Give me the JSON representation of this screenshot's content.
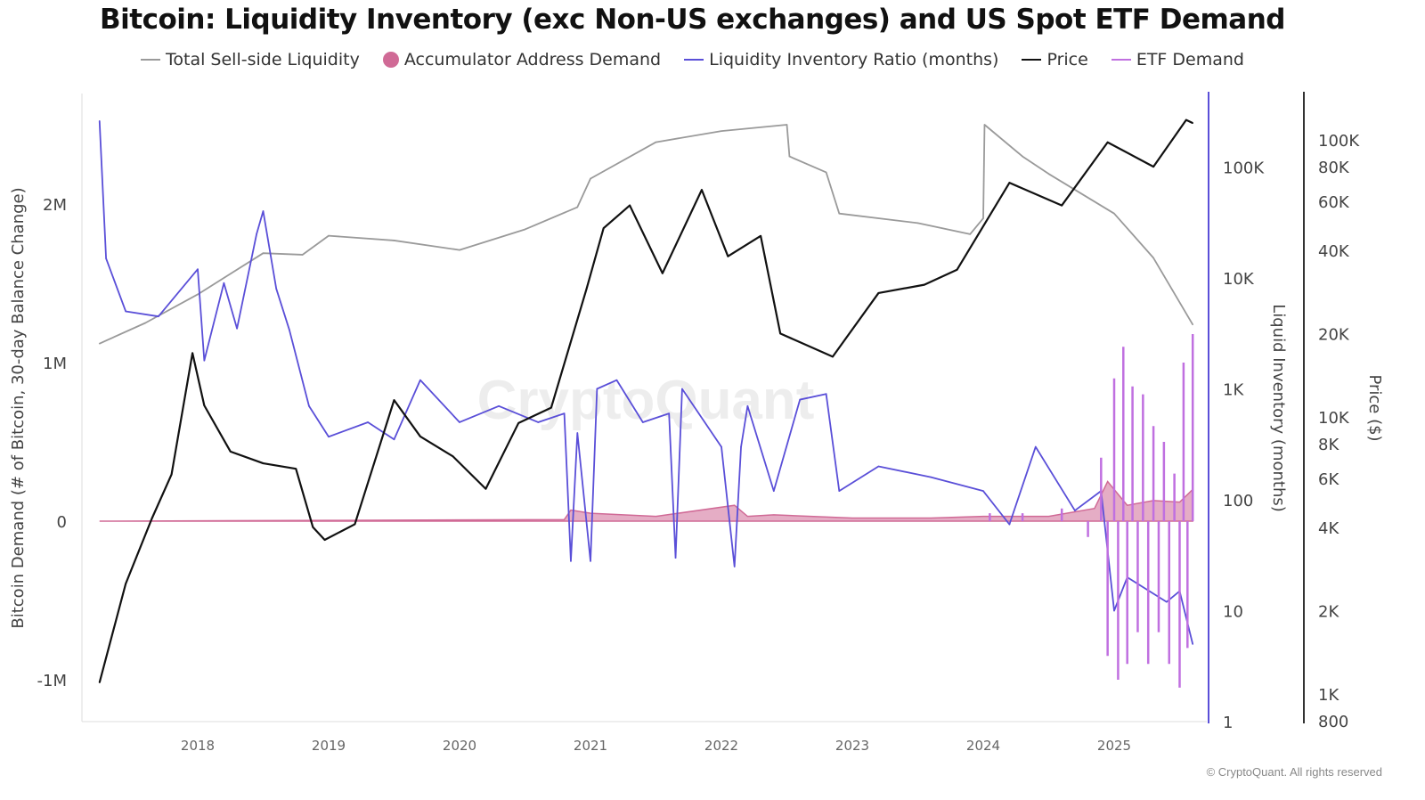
{
  "chart_data": {
    "type": "line",
    "title": "Bitcoin: Liquidity Inventory (exc Non-US exchanges) and US Spot ETF Demand",
    "watermark": "CryptoQuant",
    "copyright": "© CryptoQuant. All rights reserved",
    "grid": false,
    "legend_placement": "top",
    "legend": [
      {
        "name": "Total Sell-side Liquidity",
        "color": "#9a9a9a",
        "marker": "line"
      },
      {
        "name": "Accumulator Address Demand",
        "color": "#d06a96",
        "marker": "dot"
      },
      {
        "name": "Liquidity Inventory Ratio (months)",
        "color": "#5a4fd8",
        "marker": "line"
      },
      {
        "name": "Price",
        "color": "#111111",
        "marker": "line"
      },
      {
        "name": "ETF Demand",
        "color": "#c070e0",
        "marker": "line"
      }
    ],
    "x_axis": {
      "ticks": [
        "2018",
        "2019",
        "2020",
        "2021",
        "2022",
        "2023",
        "2024",
        "2025"
      ]
    },
    "y_left": {
      "label": "Bitcoin Demand (# of Bitcoin, 30-day Balance Change)",
      "ticks": [
        "2M",
        "1M",
        "0",
        "-1M"
      ],
      "range": [
        -1.25,
        2.7
      ]
    },
    "y_right1": {
      "label": "Liquid Inventory (months)",
      "scale": "log",
      "ticks": [
        "100K",
        "10K",
        "1K",
        "100",
        "10",
        "1"
      ],
      "range": [
        1,
        300000
      ]
    },
    "y_right2": {
      "label": "Price ($)",
      "scale": "log",
      "ticks": [
        "100K",
        "80K",
        "60K",
        "40K",
        "20K",
        "10K",
        "8K",
        "6K",
        "4K",
        "2K",
        "1K",
        "800"
      ],
      "range": [
        800,
        160000
      ]
    },
    "series": [
      {
        "name": "Total Sell-side Liquidity",
        "axis": "left",
        "unit": "M BTC",
        "x": [
          2017.25,
          2017.6,
          2018.0,
          2018.5,
          2018.8,
          2019.0,
          2019.5,
          2020.0,
          2020.5,
          2020.9,
          2021.0,
          2021.5,
          2022.0,
          2022.5,
          2022.52,
          2022.8,
          2022.9,
          2023.5,
          2023.9,
          2024.0,
          2024.01,
          2024.3,
          2024.5,
          2025.0,
          2025.3,
          2025.6
        ],
        "y": [
          1.12,
          1.25,
          1.43,
          1.69,
          1.68,
          1.8,
          1.77,
          1.71,
          1.84,
          1.98,
          2.16,
          2.39,
          2.46,
          2.5,
          2.3,
          2.2,
          1.94,
          1.88,
          1.81,
          1.91,
          2.5,
          2.3,
          2.19,
          1.94,
          1.66,
          1.24
        ]
      },
      {
        "name": "Liquidity Inventory Ratio (months)",
        "axis": "right1",
        "x": [
          2017.25,
          2017.3,
          2017.45,
          2017.7,
          2018.0,
          2018.05,
          2018.2,
          2018.3,
          2018.45,
          2018.5,
          2018.6,
          2018.7,
          2018.85,
          2019.0,
          2019.3,
          2019.5,
          2019.7,
          2020.0,
          2020.3,
          2020.6,
          2020.8,
          2020.85,
          2020.9,
          2021.0,
          2021.05,
          2021.2,
          2021.4,
          2021.6,
          2021.65,
          2021.7,
          2022.0,
          2022.1,
          2022.15,
          2022.2,
          2022.4,
          2022.6,
          2022.8,
          2022.9,
          2023.2,
          2023.6,
          2024.0,
          2024.2,
          2024.4,
          2024.7,
          2024.9,
          2025.0,
          2025.1,
          2025.4,
          2025.5,
          2025.6
        ],
        "y": [
          260000,
          15000,
          5000,
          4500,
          12000,
          1800,
          9000,
          3500,
          25000,
          40000,
          8000,
          3400,
          700,
          370,
          500,
          350,
          1200,
          500,
          700,
          500,
          600,
          28,
          400,
          28,
          1000,
          1200,
          500,
          600,
          30,
          1000,
          300,
          25,
          300,
          700,
          120,
          800,
          900,
          120,
          200,
          160,
          120,
          60,
          300,
          80,
          120,
          10,
          20,
          12,
          15,
          5
        ]
      },
      {
        "name": "Price",
        "axis": "right2",
        "x": [
          2017.25,
          2017.45,
          2017.65,
          2017.8,
          2017.96,
          2018.05,
          2018.25,
          2018.5,
          2018.75,
          2018.88,
          2018.97,
          2019.2,
          2019.5,
          2019.7,
          2019.95,
          2020.2,
          2020.45,
          2020.7,
          2020.97,
          2021.1,
          2021.3,
          2021.55,
          2021.85,
          2022.05,
          2022.3,
          2022.45,
          2022.85,
          2023.2,
          2023.55,
          2023.8,
          2024.2,
          2024.6,
          2024.95,
          2025.3,
          2025.55,
          2025.6
        ],
        "y": [
          1100,
          2500,
          4300,
          6200,
          17000,
          11000,
          7500,
          6800,
          6500,
          4000,
          3600,
          4100,
          11500,
          8500,
          7200,
          5500,
          9500,
          10800,
          29000,
          48000,
          58000,
          33000,
          66000,
          38000,
          45000,
          20000,
          16500,
          28000,
          30000,
          34000,
          70000,
          58000,
          98000,
          80000,
          118000,
          115000
        ]
      },
      {
        "name": "Accumulator Address Demand",
        "axis": "left",
        "unit": "M BTC",
        "x": [
          2017.25,
          2019.0,
          2020.8,
          2020.85,
          2021.0,
          2021.5,
          2022.1,
          2022.2,
          2022.4,
          2023.0,
          2023.6,
          2024.0,
          2024.5,
          2024.85,
          2024.95,
          2025.1,
          2025.3,
          2025.5,
          2025.6
        ],
        "y": [
          0,
          0.005,
          0.01,
          0.07,
          0.05,
          0.03,
          0.1,
          0.03,
          0.04,
          0.02,
          0.02,
          0.03,
          0.03,
          0.08,
          0.25,
          0.1,
          0.13,
          0.12,
          0.2
        ]
      },
      {
        "name": "ETF Demand",
        "axis": "left",
        "unit": "M BTC",
        "x": [
          2024.05,
          2024.3,
          2024.6,
          2024.8,
          2024.9,
          2024.95,
          2025.0,
          2025.03,
          2025.07,
          2025.1,
          2025.14,
          2025.18,
          2025.22,
          2025.26,
          2025.3,
          2025.34,
          2025.38,
          2025.42,
          2025.46,
          2025.5,
          2025.53,
          2025.56,
          2025.6
        ],
        "y": [
          0.05,
          0.05,
          0.08,
          -0.1,
          0.4,
          -0.85,
          0.9,
          -1.0,
          1.1,
          -0.9,
          0.85,
          -0.7,
          0.8,
          -0.9,
          0.6,
          -0.7,
          0.5,
          -0.9,
          0.3,
          -1.05,
          1.0,
          -0.8,
          1.18
        ]
      }
    ]
  }
}
